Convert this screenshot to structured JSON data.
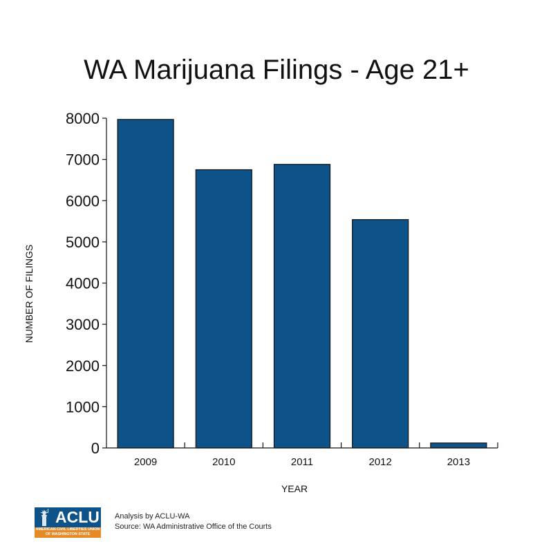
{
  "chart_data": {
    "type": "bar",
    "title": "WA Marijuana Filings -  Age 21+",
    "xlabel": "YEAR",
    "ylabel": "NUMBER OF FILINGS",
    "categories": [
      "2009",
      "2010",
      "2011",
      "2012",
      "2013"
    ],
    "values": [
      7970,
      6750,
      6880,
      5540,
      120
    ],
    "ylim": [
      0,
      8000
    ],
    "yticks": [
      "0",
      "1000",
      "2000",
      "3000",
      "4000",
      "5000",
      "6000",
      "7000",
      "8000"
    ],
    "grid": false,
    "legend": "none",
    "bar_color": "#0d5289"
  },
  "footer": {
    "logo": {
      "word": "ACLU",
      "org_line1": "American Civil Liberties Union",
      "org_line2": "of Washington State",
      "colors": {
        "blue": "#0d5289",
        "orange": "#e58a27"
      }
    },
    "analysis": "Analysis by ACLU-WA",
    "source": "Source: WA Administrative Office of the Courts"
  }
}
